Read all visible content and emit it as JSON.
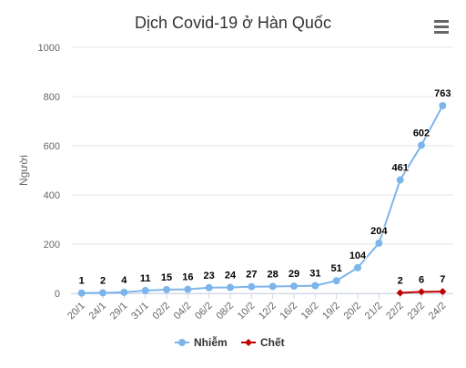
{
  "chart_data": {
    "type": "line",
    "title": "Dịch Covid-19 ở Hàn Quốc",
    "ylabel": "Người",
    "xlabel": "",
    "ylim": [
      0,
      1000
    ],
    "yticks": [
      0,
      200,
      400,
      600,
      800,
      1000
    ],
    "grid": true,
    "legend_position": "bottom",
    "categories": [
      "20/1",
      "24/1",
      "29/1",
      "31/1",
      "02/2",
      "04/2",
      "06/2",
      "08/2",
      "10/2",
      "12/2",
      "16/2",
      "18/2",
      "19/2",
      "20/2",
      "21/2",
      "22/2",
      "23/2",
      "24/2"
    ],
    "series": [
      {
        "name": "Nhiễm",
        "color": "#7cb5ec",
        "marker": "circle",
        "values": [
          1,
          2,
          4,
          11,
          15,
          16,
          23,
          24,
          27,
          28,
          29,
          31,
          51,
          104,
          204,
          461,
          602,
          763
        ]
      },
      {
        "name": "Chết",
        "color": "#c00000",
        "marker": "diamond",
        "values": [
          null,
          null,
          null,
          null,
          null,
          null,
          null,
          null,
          null,
          null,
          null,
          null,
          null,
          null,
          null,
          2,
          6,
          7
        ]
      }
    ]
  },
  "menu_icon": "hamburger-menu-icon",
  "colors": {
    "grid": "#e6e6e6",
    "axis": "#ccd6eb",
    "text": "#666666"
  }
}
